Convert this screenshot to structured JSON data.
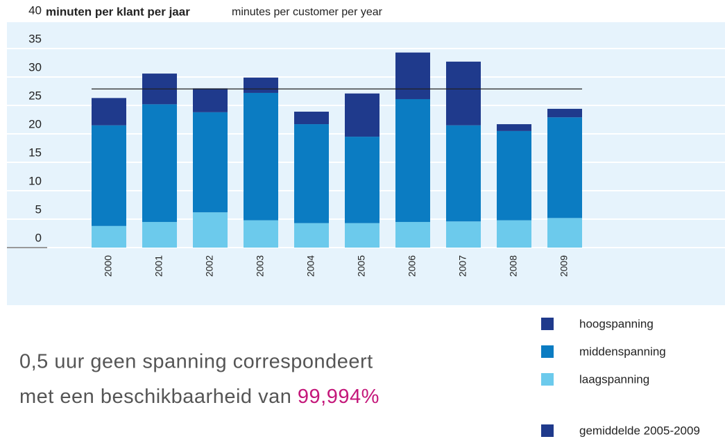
{
  "chart_data": {
    "type": "stacked_bar",
    "title": "minuten per klant per jaar",
    "subtitle": "minutes per customer per year",
    "categories": [
      "2000",
      "2001",
      "2002",
      "2003",
      "2004",
      "2005",
      "2006",
      "2007",
      "2008",
      "2009"
    ],
    "series": [
      {
        "name": "laagspanning",
        "color": "#6ccaec",
        "values": [
          3.8,
          4.5,
          6.2,
          4.8,
          4.3,
          4.3,
          4.5,
          4.6,
          4.8,
          5.2
        ]
      },
      {
        "name": "middenspanning",
        "color": "#0b7cc2",
        "values": [
          17.7,
          20.7,
          17.6,
          22.4,
          17.4,
          15.2,
          21.6,
          16.9,
          15.7,
          17.7
        ]
      },
      {
        "name": "hoogspanning",
        "color": "#1f3a8c",
        "values": [
          4.8,
          5.4,
          4.2,
          2.7,
          2.2,
          7.6,
          8.2,
          11.2,
          1.2,
          1.5
        ]
      }
    ],
    "average": {
      "name": "gemiddelde 2005-2009",
      "value": 27.9,
      "color": "#1f3a8c"
    },
    "ylim": [
      0,
      40
    ],
    "yticks": [
      0,
      5,
      10,
      15,
      20,
      25,
      30,
      35,
      40
    ],
    "grid": true,
    "note": {
      "line1": "0,5 uur geen spanning correspondeert",
      "line2": "met een  beschikbaarheid van",
      "highlight": "99,994%"
    }
  }
}
